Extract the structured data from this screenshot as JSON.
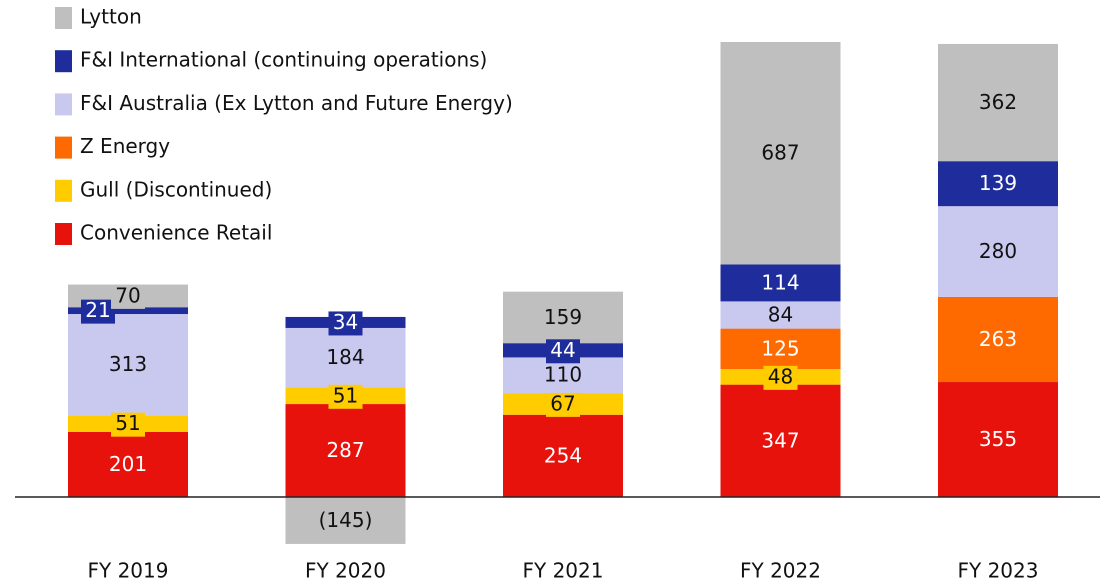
{
  "chart_data": {
    "type": "stacked_bar",
    "categories": [
      "FY 2019",
      "FY 2020",
      "FY 2021",
      "FY 2022",
      "FY 2023"
    ],
    "series": [
      {
        "name": "Convenience Retail",
        "color": "#e8120c",
        "values": [
          201,
          287,
          254,
          347,
          355
        ]
      },
      {
        "name": "Gull (Discontinued)",
        "color": "#ffcc00",
        "values": [
          51,
          51,
          67,
          48,
          null
        ]
      },
      {
        "name": "Z Energy",
        "color": "#ff6a00",
        "values": [
          null,
          null,
          null,
          125,
          263
        ]
      },
      {
        "name": "F&I Australia (Ex Lytton and Future Energy)",
        "color": "#c9c9f0",
        "values": [
          313,
          184,
          110,
          84,
          280
        ]
      },
      {
        "name": "F&I International (continuing operations)",
        "color": "#1f2c9c",
        "values": [
          21,
          34,
          44,
          114,
          139
        ]
      },
      {
        "name": "Lytton",
        "color": "#bfbfbf",
        "values": [
          70,
          -145,
          159,
          687,
          362
        ],
        "value_labels": [
          "70",
          "(145)",
          "159",
          "687",
          "362"
        ]
      }
    ]
  }
}
